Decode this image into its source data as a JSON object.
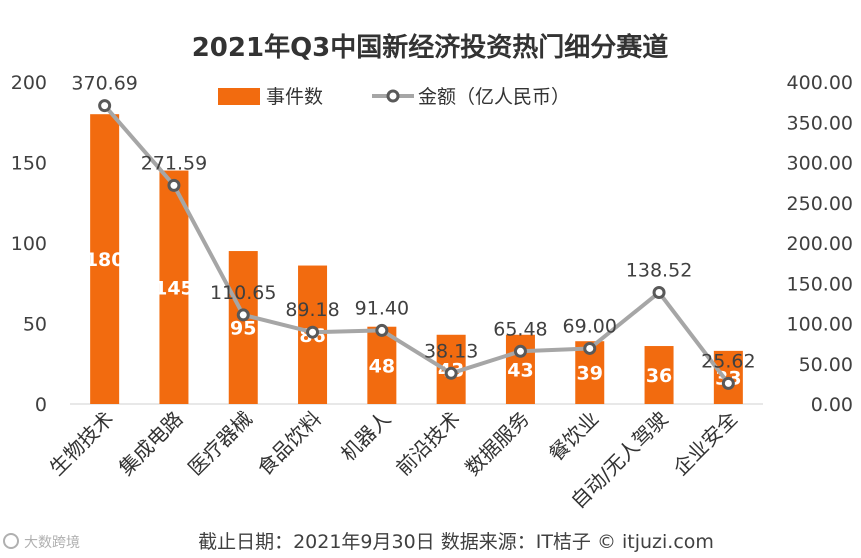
{
  "chart_data": {
    "type": "bar",
    "title": "2021年Q3中国新经济投资热门细分赛道",
    "categories": [
      "生物技术",
      "集成电路",
      "医疗器械",
      "食品饮料",
      "机器人",
      "前沿技术",
      "数据服务",
      "餐饮业",
      "自动/无人驾驶",
      "企业安全"
    ],
    "series": [
      {
        "name": "事件数",
        "type": "bar",
        "axis": "left",
        "color": "#f26b0f",
        "values": [
          180,
          145,
          95,
          86,
          48,
          43,
          43,
          39,
          36,
          33
        ]
      },
      {
        "name": "金额（亿人民币）",
        "type": "line",
        "axis": "right",
        "color": "#a6a6a6",
        "values": [
          370.69,
          271.59,
          110.65,
          89.18,
          91.4,
          38.13,
          65.48,
          69.0,
          138.52,
          25.62
        ]
      }
    ],
    "left_axis": {
      "min": 0,
      "max": 200,
      "ticks": [
        "0",
        "50",
        "100",
        "150",
        "200"
      ]
    },
    "right_axis": {
      "min": 0,
      "max": 400,
      "ticks": [
        "0.00",
        "50.00",
        "100.00",
        "150.00",
        "200.00",
        "250.00",
        "300.00",
        "350.00",
        "400.00"
      ]
    },
    "bar_labels": [
      "180",
      "145",
      "95",
      "86",
      "48",
      "43",
      "43",
      "39",
      "36",
      "33"
    ],
    "line_labels": [
      "370.69",
      "271.59",
      "110.65",
      "89.18",
      "91.40",
      "38.13",
      "65.48",
      "69.00",
      "138.52",
      "25.62"
    ],
    "legend_position": "top-center",
    "grid": false
  },
  "footer": {
    "text": "截止日期：2021年9月30日    数据来源：IT桔子 © itjuzi.com"
  },
  "watermark": {
    "text": "大数跨境"
  }
}
